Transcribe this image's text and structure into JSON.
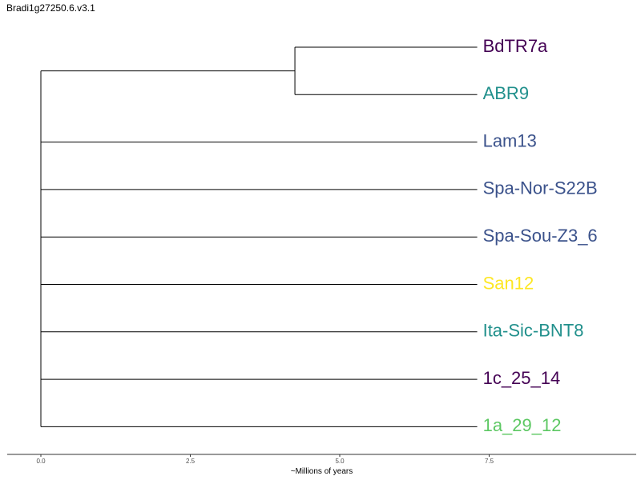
{
  "title": "Bradi1g27250.6.v3.1",
  "tree": {
    "tips": [
      {
        "label": "BdTR7a",
        "color": "#440154"
      },
      {
        "label": "ABR9",
        "color": "#21908C"
      },
      {
        "label": "Lam13",
        "color": "#3B528B"
      },
      {
        "label": "Spa-Nor-S22B",
        "color": "#3B528B"
      },
      {
        "label": "Spa-Sou-Z3_6",
        "color": "#3B528B"
      },
      {
        "label": "San12",
        "color": "#FDE725"
      },
      {
        "label": "Ita-Sic-BNT8",
        "color": "#21908C"
      },
      {
        "label": "1c_25_14",
        "color": "#440154"
      },
      {
        "label": "1a_29_12",
        "color": "#5DC863"
      }
    ],
    "root_age": 0,
    "tip_age": 7.3,
    "clade_BdTR7a_ABR9_age": 4.25,
    "branch_color": "#000000"
  },
  "axis": {
    "title": "~Millions of years",
    "ticks": [
      {
        "value": 0,
        "label": "0.0"
      },
      {
        "value": 2.5,
        "label": "2.5"
      },
      {
        "value": 5,
        "label": "5.0"
      },
      {
        "value": 7.5,
        "label": "7.5"
      }
    ],
    "color": "#333333"
  }
}
